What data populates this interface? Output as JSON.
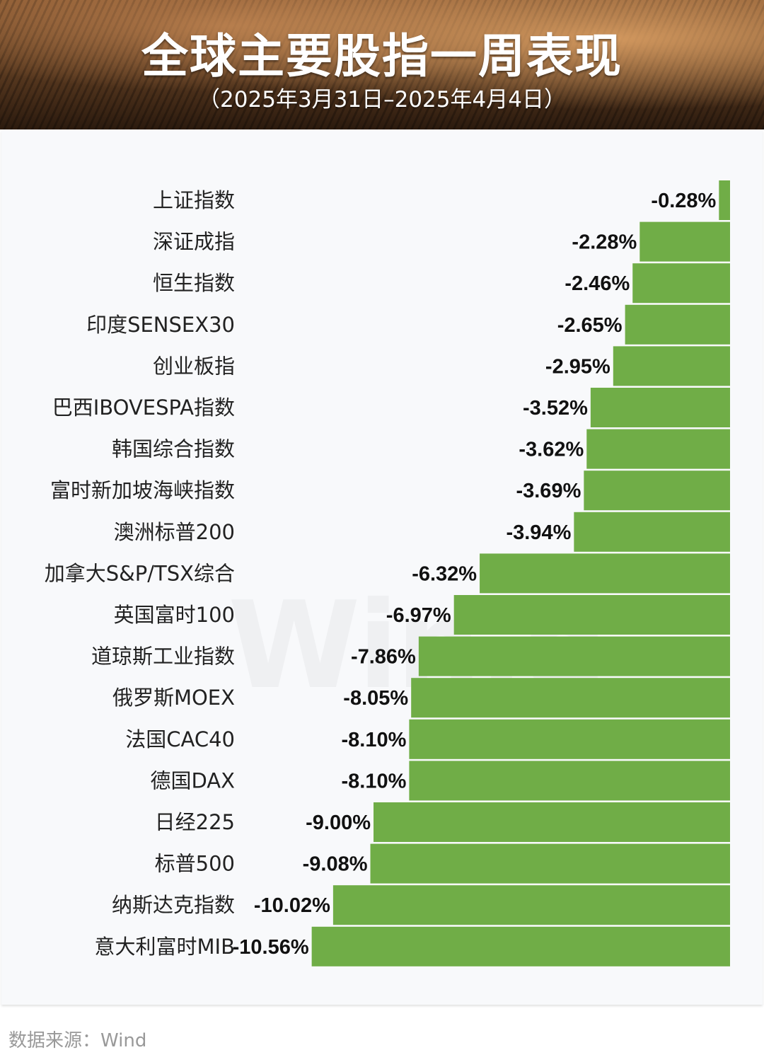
{
  "header": {
    "title": "全球主要股指一周表现",
    "subtitle": "（2025年3月31日–2025年4月4日）"
  },
  "watermark": "Win.d",
  "footer": {
    "source": "数据来源：Wind"
  },
  "colors": {
    "bar": "#70ad47",
    "label": "#222222",
    "value": "#111111"
  },
  "chart_data": {
    "type": "bar",
    "orientation": "horizontal",
    "title": "全球主要股指一周表现",
    "subtitle": "（2025年3月31日–2025年4月4日）",
    "unit": "%",
    "categories": [
      "上证指数",
      "深证成指",
      "恒生指数",
      "印度SENSEX30",
      "创业板指",
      "巴西IBOVESPA指数",
      "韩国综合指数",
      "富时新加坡海峡指数",
      "澳洲标普200",
      "加拿大S&P/TSX综合",
      "英国富时100",
      "道琼斯工业指数",
      "俄罗斯MOEX",
      "法国CAC40",
      "德国DAX",
      "日经225",
      "标普500",
      "纳斯达克指数",
      "意大利富时MIB"
    ],
    "values": [
      -0.28,
      -2.28,
      -2.46,
      -2.65,
      -2.95,
      -3.52,
      -3.62,
      -3.69,
      -3.94,
      -6.32,
      -6.97,
      -7.86,
      -8.05,
      -8.1,
      -8.1,
      -9.0,
      -9.08,
      -10.02,
      -10.56
    ],
    "data_labels": [
      "-0.28%",
      "-2.28%",
      "-2.46%",
      "-2.65%",
      "-2.95%",
      "-3.52%",
      "-3.62%",
      "-3.69%",
      "-3.94%",
      "-6.32%",
      "-6.97%",
      "-7.86%",
      "-8.05%",
      "-8.10%",
      "-8.10%",
      "-9.00%",
      "-9.08%",
      "-10.02%",
      "-10.56%"
    ],
    "grid": false,
    "legend": "none"
  }
}
